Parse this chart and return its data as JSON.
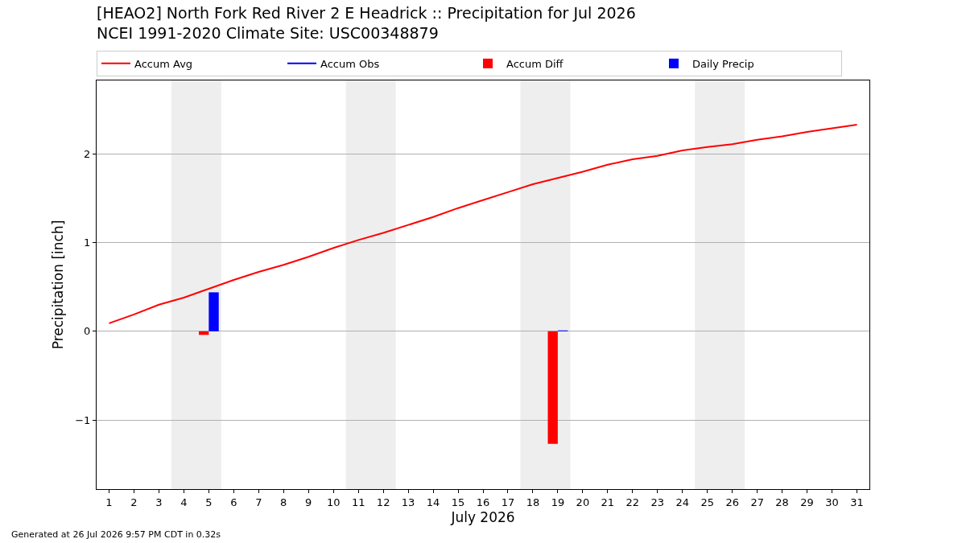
{
  "chart_data": {
    "type": "line",
    "title": "[HEAO2] North Fork Red River 2 E Headrick :: Precipitation for Jul 2026",
    "subtitle": "NCEI 1991-2020 Climate Site: USC00348879",
    "xlabel": "July 2026",
    "ylabel": "Precipitation [inch]",
    "x": [
      1,
      2,
      3,
      4,
      5,
      6,
      7,
      8,
      9,
      10,
      11,
      12,
      13,
      14,
      15,
      16,
      17,
      18,
      19,
      20,
      21,
      22,
      23,
      24,
      25,
      26,
      27,
      28,
      29,
      30,
      31
    ],
    "xlim": [
      0.5,
      31.5
    ],
    "xticks": [
      1,
      2,
      3,
      4,
      5,
      6,
      7,
      8,
      9,
      10,
      11,
      12,
      13,
      14,
      15,
      16,
      17,
      18,
      19,
      20,
      21,
      22,
      23,
      24,
      25,
      26,
      27,
      28,
      29,
      30,
      31
    ],
    "ylim": [
      -1.78,
      2.83
    ],
    "yticks": [
      {
        "value": -1,
        "label": "−1"
      },
      0,
      1,
      2
    ],
    "grid": "y",
    "legend": "top",
    "series": [
      {
        "name": "Accum Avg",
        "color": "#ff0000",
        "values": [
          0.09,
          0.19,
          0.3,
          0.38,
          0.48,
          0.58,
          0.67,
          0.75,
          0.84,
          0.94,
          1.03,
          1.11,
          1.2,
          1.29,
          1.39,
          1.48,
          1.57,
          1.66,
          1.73,
          1.8,
          1.88,
          1.94,
          1.98,
          2.04,
          2.08,
          2.11,
          2.16,
          2.2,
          2.25,
          2.29,
          2.33
        ]
      },
      {
        "name": "Accum Obs",
        "color": "#0000ff",
        "values": [
          null,
          null,
          null,
          null,
          null,
          null,
          null,
          null,
          null,
          null,
          null,
          null,
          null,
          null,
          null,
          null,
          null,
          null,
          null,
          null,
          null,
          null,
          null,
          null,
          null,
          null,
          null,
          null,
          null,
          null,
          null
        ]
      },
      {
        "name": "Accum Diff",
        "type": "bar",
        "color": "#ff0000",
        "values": [
          null,
          null,
          null,
          null,
          -0.04,
          null,
          null,
          null,
          null,
          null,
          null,
          null,
          null,
          null,
          null,
          null,
          null,
          null,
          -1.27,
          null,
          null,
          null,
          null,
          null,
          null,
          null,
          null,
          null,
          null,
          null,
          null
        ]
      },
      {
        "name": "Daily Precip",
        "type": "bar",
        "color": "#0000ff",
        "values": [
          null,
          null,
          null,
          null,
          0.44,
          null,
          null,
          null,
          null,
          null,
          null,
          null,
          null,
          null,
          null,
          null,
          null,
          null,
          0.01,
          null,
          null,
          null,
          null,
          null,
          null,
          null,
          null,
          null,
          null,
          null,
          null
        ]
      }
    ],
    "bands": [
      {
        "axis": "x",
        "from": 3.5,
        "to": 5.5,
        "color": "#eeeeee"
      },
      {
        "axis": "x",
        "from": 10.5,
        "to": 12.5,
        "color": "#eeeeee"
      },
      {
        "axis": "x",
        "from": 17.5,
        "to": 19.5,
        "color": "#eeeeee"
      },
      {
        "axis": "x",
        "from": 24.5,
        "to": 26.5,
        "color": "#eeeeee"
      }
    ],
    "annotations": [
      "Generated at 26 Jul 2026 9:57 PM CDT in 0.32s"
    ]
  }
}
